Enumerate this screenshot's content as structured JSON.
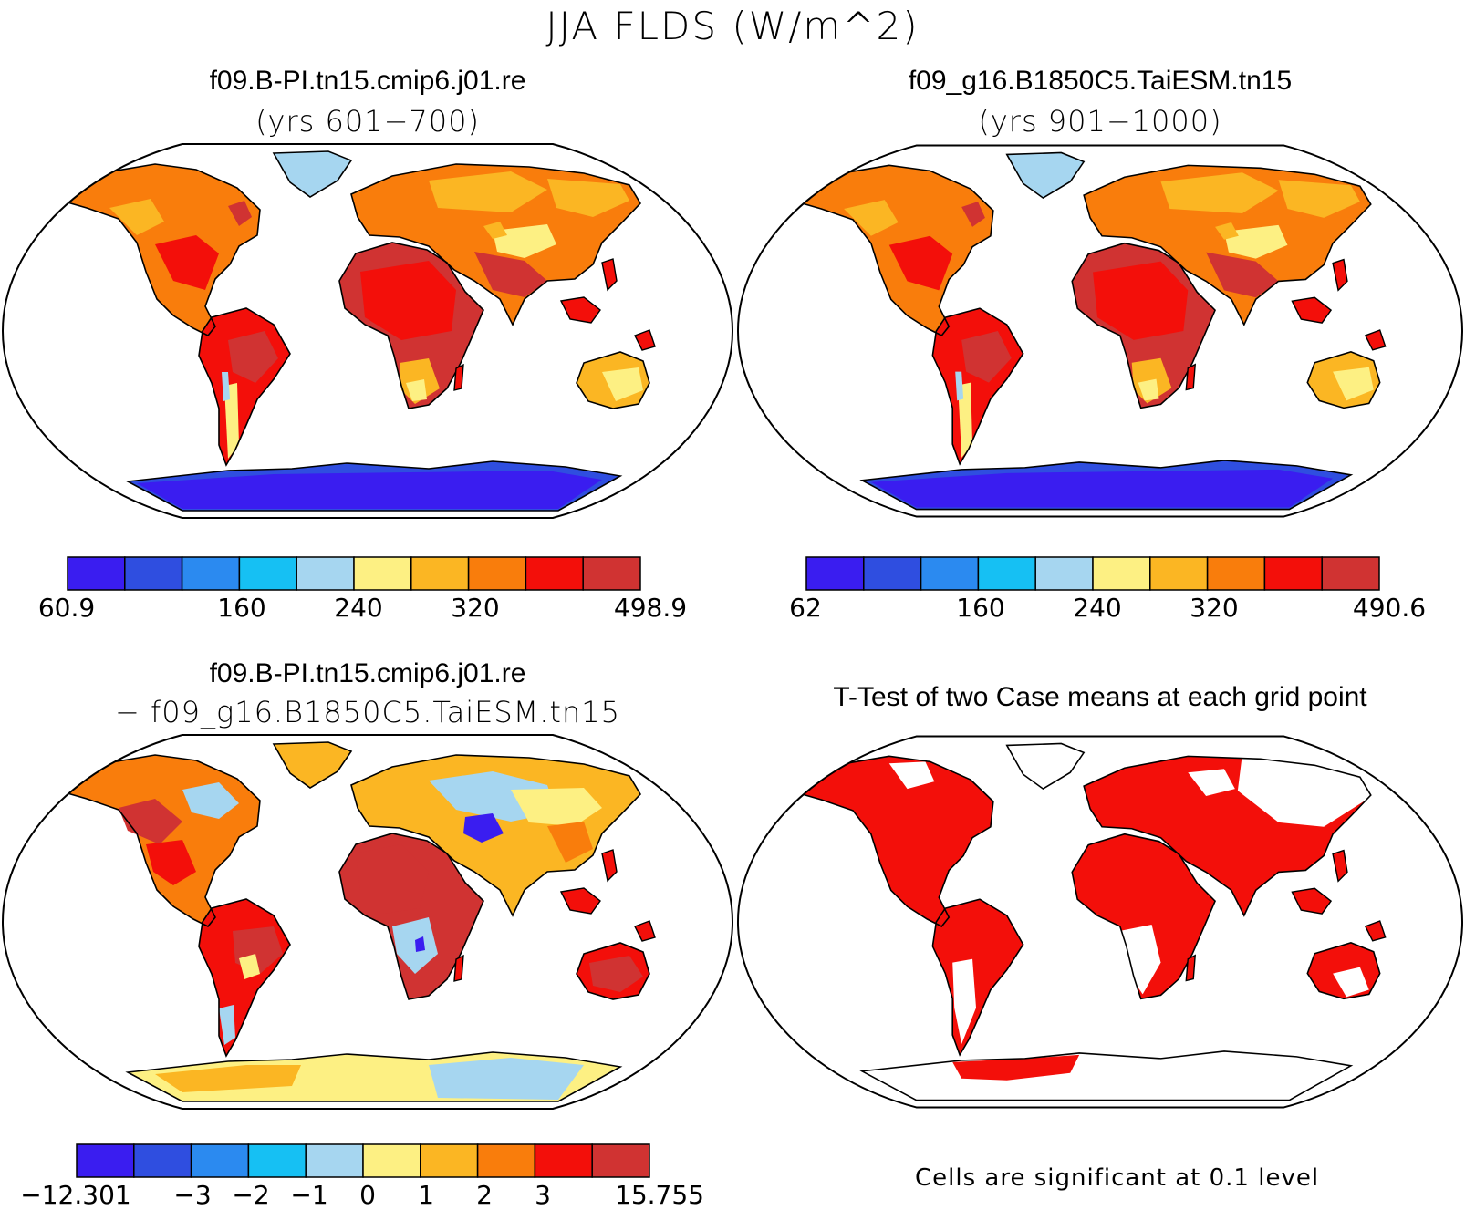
{
  "title": "JJA FLDS (W/m^2)",
  "palette": [
    "#3a1df0",
    "#2f4ee0",
    "#2b8af0",
    "#16c0f3",
    "#a6d6f0",
    "#fdf083",
    "#fbb623",
    "#f97d0c",
    "#f30f0a",
    "#d03332"
  ],
  "panels": [
    {
      "case_title": "f09.B-PI.tn15.cmip6.j01.re",
      "subtitle": "(yrs 601−700)",
      "colorbar": {
        "min": "60.9",
        "ticks": [
          "160",
          "240",
          "320"
        ],
        "max": "498.9"
      }
    },
    {
      "case_title": "f09_g16.B1850C5.TaiESM.tn15",
      "subtitle": "(yrs 901−1000)",
      "colorbar": {
        "min": "62",
        "ticks": [
          "160",
          "240",
          "320"
        ],
        "max": "490.6"
      }
    },
    {
      "case_title": "f09.B-PI.tn15.cmip6.j01.re",
      "subtitle": "− f09_g16.B1850C5.TaiESM.tn15",
      "colorbar": {
        "min": "−12.301",
        "ticks": [
          "−3",
          "−2",
          "−1",
          "0",
          "1",
          "2",
          "3"
        ],
        "max": "15.755"
      }
    },
    {
      "case_title": "T-Test of two Case means at each grid point",
      "note": "Cells are significant at 0.1 level",
      "significant_color": "#f30f0a"
    }
  ]
}
